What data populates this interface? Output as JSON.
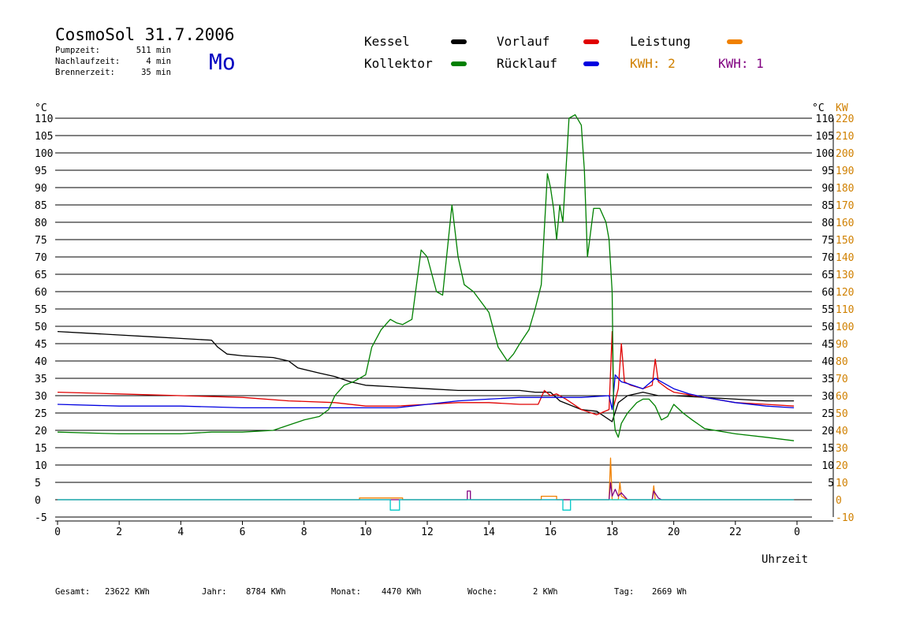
{
  "header": {
    "title": "CosmoSol 31.7.2006",
    "weekday": "Mo",
    "stats": [
      {
        "label": "Pumpzeit:",
        "value": "511 min"
      },
      {
        "label": "Nachlaufzeit:",
        "value": "4 min"
      },
      {
        "label": "Brennerzeit:",
        "value": "35 min"
      }
    ]
  },
  "legend": {
    "items": [
      {
        "label": "Kessel",
        "color": "#000000"
      },
      {
        "label": "Vorlauf",
        "color": "#e00000"
      },
      {
        "label": "Leistung",
        "color": "#f08000"
      },
      {
        "label": "Kollektor",
        "color": "#008000"
      },
      {
        "label": "Rücklauf",
        "color": "#0000e0"
      }
    ],
    "kwh_labels": [
      {
        "text": "KWH: 2",
        "color": "#d08000"
      },
      {
        "text": "KWH: 1",
        "color": "#800080"
      }
    ]
  },
  "footer": {
    "stats": [
      {
        "label": "Gesamt:",
        "value": "23622 KWh"
      },
      {
        "label": "Jahr:",
        "value": "8784 KWh"
      },
      {
        "label": "Monat:",
        "value": "4470 KWh"
      },
      {
        "label": "Woche:",
        "value": "2 KWh"
      },
      {
        "label": "Tag:",
        "value": "2669 Wh"
      }
    ]
  },
  "chart_data": {
    "type": "line",
    "xlabel": "Uhrzeit",
    "ylabel_left": "°C",
    "ylabel_right_temp": "°C",
    "ylabel_right_power": "KW",
    "xlim": [
      0,
      24
    ],
    "ylim": [
      -5,
      110
    ],
    "power_ylim": [
      -10,
      220
    ],
    "x_ticks": [
      "0",
      "2",
      "4",
      "6",
      "8",
      "10",
      "12",
      "14",
      "16",
      "18",
      "20",
      "22",
      "0"
    ],
    "y_ticks": [
      "-5",
      "0",
      "5",
      "10",
      "15",
      "20",
      "25",
      "30",
      "35",
      "40",
      "45",
      "50",
      "55",
      "60",
      "65",
      "70",
      "75",
      "80",
      "85",
      "90",
      "95",
      "100",
      "105",
      "110"
    ],
    "y_ticks_right": [
      "5",
      "10",
      "15",
      "20",
      "25",
      "30",
      "35",
      "40",
      "45",
      "50",
      "55",
      "60",
      "65",
      "70",
      "75",
      "80",
      "85",
      "90",
      "95",
      "100",
      "105",
      "110"
    ],
    "power_ticks": [
      "-10",
      "0",
      "10",
      "20",
      "30",
      "40",
      "50",
      "60",
      "70",
      "80",
      "90",
      "100",
      "110",
      "120",
      "130",
      "140",
      "150",
      "160",
      "170",
      "180",
      "190",
      "200",
      "210",
      "220"
    ],
    "grid": true,
    "series": [
      {
        "name": "Kessel",
        "color": "#000000",
        "points": [
          [
            0,
            48.5
          ],
          [
            1,
            48
          ],
          [
            2,
            47.5
          ],
          [
            3,
            47
          ],
          [
            4,
            46.5
          ],
          [
            5,
            46
          ],
          [
            5.2,
            44
          ],
          [
            5.5,
            42
          ],
          [
            6,
            41.5
          ],
          [
            7,
            41
          ],
          [
            7.5,
            40
          ],
          [
            7.8,
            38
          ],
          [
            8.5,
            36.5
          ],
          [
            9,
            35.5
          ],
          [
            9.5,
            34
          ],
          [
            10,
            33
          ],
          [
            11,
            32.5
          ],
          [
            12,
            32
          ],
          [
            13,
            31.5
          ],
          [
            14,
            31.5
          ],
          [
            15,
            31.5
          ],
          [
            15.5,
            31
          ],
          [
            16,
            31
          ],
          [
            16.3,
            28.5
          ],
          [
            17,
            26
          ],
          [
            17.5,
            25.5
          ],
          [
            18,
            22.5
          ],
          [
            18.2,
            28
          ],
          [
            18.5,
            30
          ],
          [
            19,
            31
          ],
          [
            19.5,
            30
          ],
          [
            20,
            30
          ],
          [
            21,
            29.5
          ],
          [
            22,
            29
          ],
          [
            23,
            28.5
          ],
          [
            23.9,
            28.5
          ]
        ]
      },
      {
        "name": "Vorlauf",
        "color": "#e00000",
        "points": [
          [
            0,
            31
          ],
          [
            2,
            30.5
          ],
          [
            4,
            30
          ],
          [
            6,
            29.5
          ],
          [
            7.5,
            28.5
          ],
          [
            9,
            28
          ],
          [
            10,
            27
          ],
          [
            11,
            27
          ],
          [
            12,
            27.5
          ],
          [
            13,
            28
          ],
          [
            14,
            28
          ],
          [
            15,
            27.5
          ],
          [
            15.6,
            27.5
          ],
          [
            15.8,
            31.5
          ],
          [
            16,
            30
          ],
          [
            16.2,
            30.5
          ],
          [
            16.5,
            29
          ],
          [
            17,
            26
          ],
          [
            17.5,
            24.5
          ],
          [
            17.9,
            26
          ],
          [
            18,
            48.5
          ],
          [
            18.05,
            27
          ],
          [
            18.2,
            32
          ],
          [
            18.3,
            45
          ],
          [
            18.4,
            34
          ],
          [
            18.6,
            33
          ],
          [
            19,
            32
          ],
          [
            19.3,
            33
          ],
          [
            19.4,
            40.5
          ],
          [
            19.5,
            34
          ],
          [
            19.8,
            32
          ],
          [
            20,
            31
          ],
          [
            21,
            29.5
          ],
          [
            22,
            28
          ],
          [
            23,
            27.5
          ],
          [
            23.9,
            27
          ]
        ]
      },
      {
        "name": "Rücklauf",
        "color": "#0000e0",
        "points": [
          [
            0,
            27.5
          ],
          [
            2,
            27
          ],
          [
            4,
            27
          ],
          [
            6,
            26.5
          ],
          [
            8,
            26.5
          ],
          [
            10,
            26.5
          ],
          [
            11,
            26.5
          ],
          [
            12,
            27.5
          ],
          [
            13,
            28.5
          ],
          [
            14,
            29
          ],
          [
            15,
            29.5
          ],
          [
            16,
            29.5
          ],
          [
            17,
            29.5
          ],
          [
            17.9,
            30
          ],
          [
            18,
            26
          ],
          [
            18.1,
            36
          ],
          [
            18.3,
            34
          ],
          [
            18.5,
            33.5
          ],
          [
            19,
            32
          ],
          [
            19.4,
            35
          ],
          [
            19.6,
            34
          ],
          [
            20,
            32
          ],
          [
            20.5,
            30.5
          ],
          [
            21,
            29.5
          ],
          [
            22,
            28
          ],
          [
            23,
            27
          ],
          [
            23.9,
            26.5
          ]
        ]
      },
      {
        "name": "Kollektor",
        "color": "#008000",
        "points": [
          [
            0,
            19.5
          ],
          [
            2,
            19
          ],
          [
            4,
            19
          ],
          [
            5,
            19.5
          ],
          [
            6,
            19.5
          ],
          [
            7,
            20
          ],
          [
            7.5,
            21.5
          ],
          [
            8,
            23
          ],
          [
            8.5,
            24
          ],
          [
            8.8,
            26
          ],
          [
            9,
            30
          ],
          [
            9.3,
            33
          ],
          [
            9.6,
            34
          ],
          [
            10,
            36
          ],
          [
            10.2,
            44
          ],
          [
            10.5,
            49
          ],
          [
            10.8,
            52
          ],
          [
            11,
            51
          ],
          [
            11.2,
            50.5
          ],
          [
            11.5,
            52
          ],
          [
            11.8,
            72
          ],
          [
            12,
            70
          ],
          [
            12.3,
            60
          ],
          [
            12.5,
            59
          ],
          [
            12.8,
            85
          ],
          [
            13,
            70
          ],
          [
            13.2,
            62
          ],
          [
            13.5,
            60
          ],
          [
            14,
            54
          ],
          [
            14.3,
            44
          ],
          [
            14.6,
            40
          ],
          [
            14.8,
            42
          ],
          [
            15,
            45
          ],
          [
            15.3,
            49
          ],
          [
            15.5,
            55
          ],
          [
            15.7,
            62
          ],
          [
            15.9,
            94
          ],
          [
            16,
            90
          ],
          [
            16.1,
            84
          ],
          [
            16.2,
            75
          ],
          [
            16.3,
            85
          ],
          [
            16.4,
            80
          ],
          [
            16.6,
            110
          ],
          [
            16.8,
            111
          ],
          [
            17,
            108
          ],
          [
            17.1,
            95
          ],
          [
            17.2,
            70
          ],
          [
            17.4,
            84
          ],
          [
            17.6,
            84
          ],
          [
            17.8,
            80
          ],
          [
            17.9,
            75
          ],
          [
            18,
            60
          ],
          [
            18.05,
            24
          ],
          [
            18.1,
            20
          ],
          [
            18.2,
            18
          ],
          [
            18.3,
            22
          ],
          [
            18.5,
            25
          ],
          [
            18.8,
            28
          ],
          [
            19,
            29
          ],
          [
            19.2,
            29
          ],
          [
            19.4,
            27
          ],
          [
            19.6,
            23
          ],
          [
            19.8,
            24
          ],
          [
            20,
            27.5
          ],
          [
            20.3,
            25
          ],
          [
            20.6,
            23
          ],
          [
            21,
            20.5
          ],
          [
            22,
            19
          ],
          [
            23,
            18
          ],
          [
            23.9,
            17
          ]
        ]
      },
      {
        "name": "Leistung",
        "color": "#f08000",
        "axis": "power",
        "points": [
          [
            0,
            0
          ],
          [
            9.8,
            0
          ],
          [
            9.8,
            1
          ],
          [
            11.2,
            1
          ],
          [
            11.2,
            0
          ],
          [
            15.7,
            0
          ],
          [
            15.7,
            2
          ],
          [
            16.2,
            2
          ],
          [
            16.2,
            0
          ],
          [
            17.9,
            0
          ],
          [
            17.95,
            24
          ],
          [
            18,
            0
          ],
          [
            18.2,
            0
          ],
          [
            18.25,
            10
          ],
          [
            18.3,
            2
          ],
          [
            18.5,
            0
          ],
          [
            19.3,
            0
          ],
          [
            19.35,
            8
          ],
          [
            19.4,
            0
          ],
          [
            23.9,
            0
          ]
        ]
      },
      {
        "name": "KWH 1",
        "color": "#800080",
        "axis": "power",
        "points": [
          [
            0,
            0
          ],
          [
            13.3,
            0
          ],
          [
            13.3,
            5
          ],
          [
            13.4,
            5
          ],
          [
            13.4,
            0
          ],
          [
            17.9,
            0
          ],
          [
            17.95,
            10
          ],
          [
            18,
            2
          ],
          [
            18.1,
            6
          ],
          [
            18.2,
            2
          ],
          [
            18.3,
            4
          ],
          [
            18.5,
            0
          ],
          [
            19.3,
            0
          ],
          [
            19.35,
            5
          ],
          [
            19.5,
            1
          ],
          [
            19.6,
            0
          ],
          [
            23.9,
            0
          ]
        ]
      },
      {
        "name": "Pumpe",
        "color": "#00c8c8",
        "points": [
          [
            0,
            0
          ],
          [
            10.8,
            0
          ],
          [
            10.8,
            -3
          ],
          [
            11.1,
            -3
          ],
          [
            11.1,
            0
          ],
          [
            16.4,
            0
          ],
          [
            16.4,
            -3
          ],
          [
            16.65,
            -3
          ],
          [
            16.65,
            0
          ],
          [
            23.9,
            0
          ]
        ]
      }
    ]
  }
}
